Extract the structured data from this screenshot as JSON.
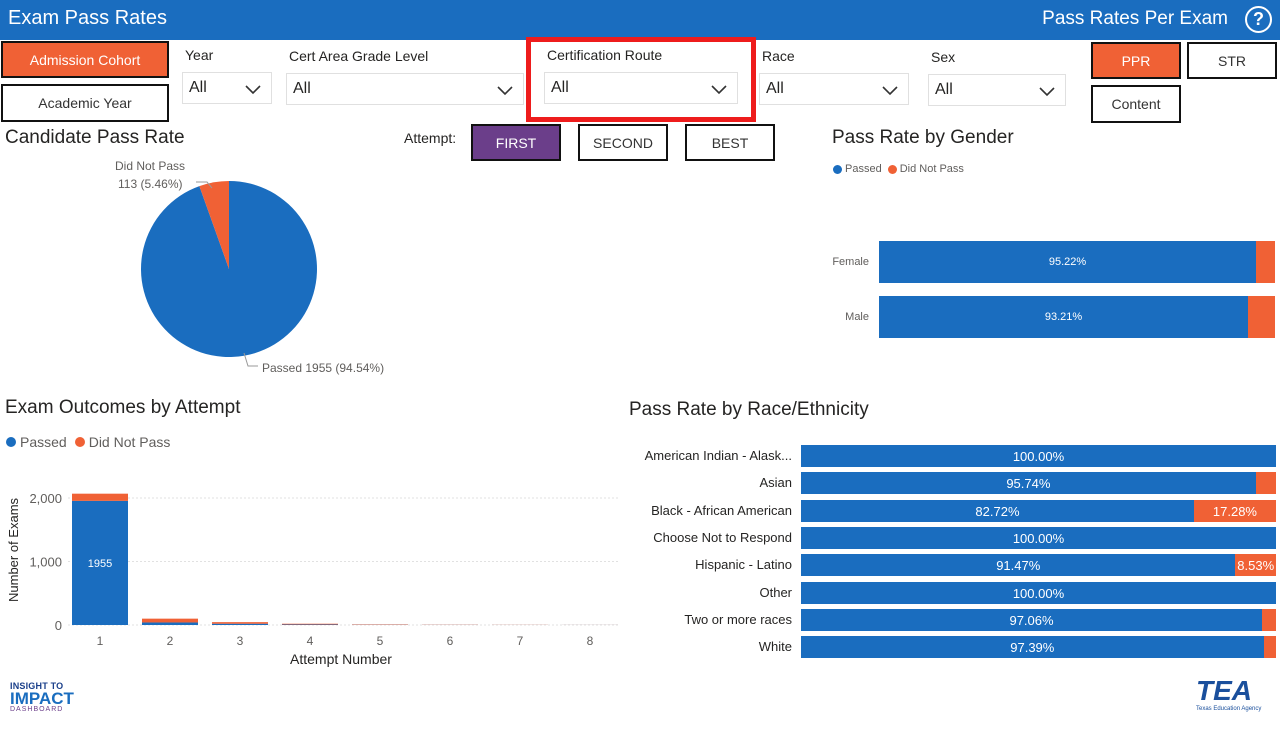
{
  "header": {
    "title": "Exam Pass Rates",
    "right_title": "Pass Rates Per Exam",
    "help_glyph": "?"
  },
  "toggles": {
    "admission_cohort": "Admission Cohort",
    "academic_year": "Academic Year",
    "ppr": "PPR",
    "str": "STR",
    "content": "Content"
  },
  "filters": {
    "year": {
      "label": "Year",
      "value": "All"
    },
    "cert_area": {
      "label": "Cert Area Grade Level",
      "value": "All"
    },
    "cert_route": {
      "label": "Certification Route",
      "value": "All"
    },
    "race": {
      "label": "Race",
      "value": "All"
    },
    "sex": {
      "label": "Sex",
      "value": "All"
    }
  },
  "attempt": {
    "label": "Attempt:",
    "first": "FIRST",
    "second": "SECOND",
    "best": "BEST"
  },
  "colors": {
    "passed": "#1a6dbf",
    "did_not_pass": "#f06135",
    "header": "#1a6dbf",
    "purple": "#6b3e8a",
    "highlight": "#ee1c1c"
  },
  "candidate_pass_rate": {
    "title": "Candidate Pass Rate",
    "did_not_pass_label": "Did Not Pass",
    "did_not_pass_value": "113 (5.46%)",
    "passed_label": "Passed 1955 (94.54%)"
  },
  "gender": {
    "title": "Pass Rate by Gender",
    "legend_passed": "Passed",
    "legend_failed": "Did Not Pass",
    "rows": [
      {
        "label": "Female",
        "value": "95.22%"
      },
      {
        "label": "Male",
        "value": "93.21%"
      }
    ]
  },
  "outcomes": {
    "title": "Exam Outcomes by Attempt",
    "legend_passed": "Passed",
    "legend_failed": "Did Not Pass",
    "ylabel": "Number of Exams",
    "xlabel": "Attempt Number",
    "yticks": [
      "0",
      "1,000",
      "2,000"
    ],
    "xticks": [
      "1",
      "2",
      "3",
      "4",
      "5",
      "6",
      "7",
      "8"
    ],
    "bar_label": "1955"
  },
  "race": {
    "title": "Pass Rate by Race/Ethnicity",
    "rows": [
      {
        "label": "American Indian - Alask...",
        "pass": "100.00%",
        "fail": ""
      },
      {
        "label": "Asian",
        "pass": "95.74%",
        "fail": ""
      },
      {
        "label": "Black - African American",
        "pass": "82.72%",
        "fail": "17.28%"
      },
      {
        "label": "Choose Not to Respond",
        "pass": "100.00%",
        "fail": ""
      },
      {
        "label": "Hispanic - Latino",
        "pass": "91.47%",
        "fail": "8.53%"
      },
      {
        "label": "Other",
        "pass": "100.00%",
        "fail": ""
      },
      {
        "label": "Two or more races",
        "pass": "97.06%",
        "fail": ""
      },
      {
        "label": "White",
        "pass": "97.39%",
        "fail": ""
      }
    ]
  },
  "chart_data": [
    {
      "type": "pie",
      "title": "Candidate Pass Rate",
      "categories": [
        "Passed",
        "Did Not Pass"
      ],
      "values": [
        1955,
        113
      ],
      "percents": [
        94.54,
        5.46
      ]
    },
    {
      "type": "bar",
      "title": "Pass Rate by Gender",
      "orientation": "horizontal",
      "stacked": "100%",
      "categories": [
        "Female",
        "Male"
      ],
      "series": [
        {
          "name": "Passed",
          "values": [
            95.22,
            93.21
          ]
        },
        {
          "name": "Did Not Pass",
          "values": [
            4.78,
            6.79
          ]
        }
      ]
    },
    {
      "type": "bar",
      "title": "Exam Outcomes by Attempt",
      "stacked": true,
      "categories": [
        "1",
        "2",
        "3",
        "4",
        "5",
        "6",
        "7",
        "8"
      ],
      "series": [
        {
          "name": "Passed",
          "values": [
            1955,
            40,
            20,
            8,
            4,
            2,
            1,
            1
          ]
        },
        {
          "name": "Did Not Pass",
          "values": [
            113,
            60,
            25,
            12,
            6,
            3,
            2,
            1
          ]
        }
      ],
      "xlabel": "Attempt Number",
      "ylabel": "Number of Exams",
      "ylim": [
        0,
        2100
      ]
    },
    {
      "type": "bar",
      "title": "Pass Rate by Race/Ethnicity",
      "orientation": "horizontal",
      "stacked": "100%",
      "categories": [
        "American Indian - Alask...",
        "Asian",
        "Black - African American",
        "Choose Not to Respond",
        "Hispanic - Latino",
        "Other",
        "Two or more races",
        "White"
      ],
      "series": [
        {
          "name": "Passed",
          "values": [
            100.0,
            95.74,
            82.72,
            100.0,
            91.47,
            100.0,
            97.06,
            97.39
          ]
        },
        {
          "name": "Did Not Pass",
          "values": [
            0,
            4.26,
            17.28,
            0,
            8.53,
            0,
            2.94,
            2.61
          ]
        }
      ]
    }
  ],
  "footer": {
    "logo_left_line1": "INSIGHT TO",
    "logo_left_line2": "IMPACT",
    "logo_left_line3": "DASHBOARD",
    "logo_right": "TEA",
    "logo_right_sub": "Texas Education Agency"
  }
}
